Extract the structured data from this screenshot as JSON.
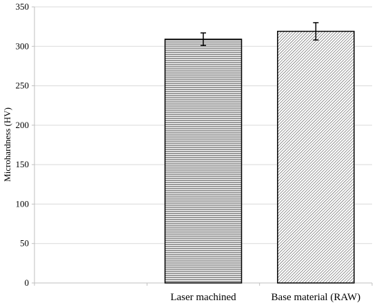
{
  "chart_data": {
    "type": "bar",
    "title": "",
    "xlabel": "",
    "ylabel": "Microhardness (HV)",
    "ylim": [
      0,
      350
    ],
    "yticks": [
      0,
      50,
      100,
      150,
      200,
      250,
      300,
      350
    ],
    "grid": true,
    "legend": "none",
    "categories": [
      "Laser machined",
      "Base material (RAW)"
    ],
    "values": [
      309,
      319
    ],
    "errors": [
      8,
      11
    ],
    "patterns": [
      "horizontal-lines",
      "diagonal-lines"
    ],
    "colors": {
      "bar_fill": "#ffffff",
      "bar_stroke": "#000000",
      "grid": "#d9d9d9",
      "axis": "#bfbfbf"
    }
  }
}
